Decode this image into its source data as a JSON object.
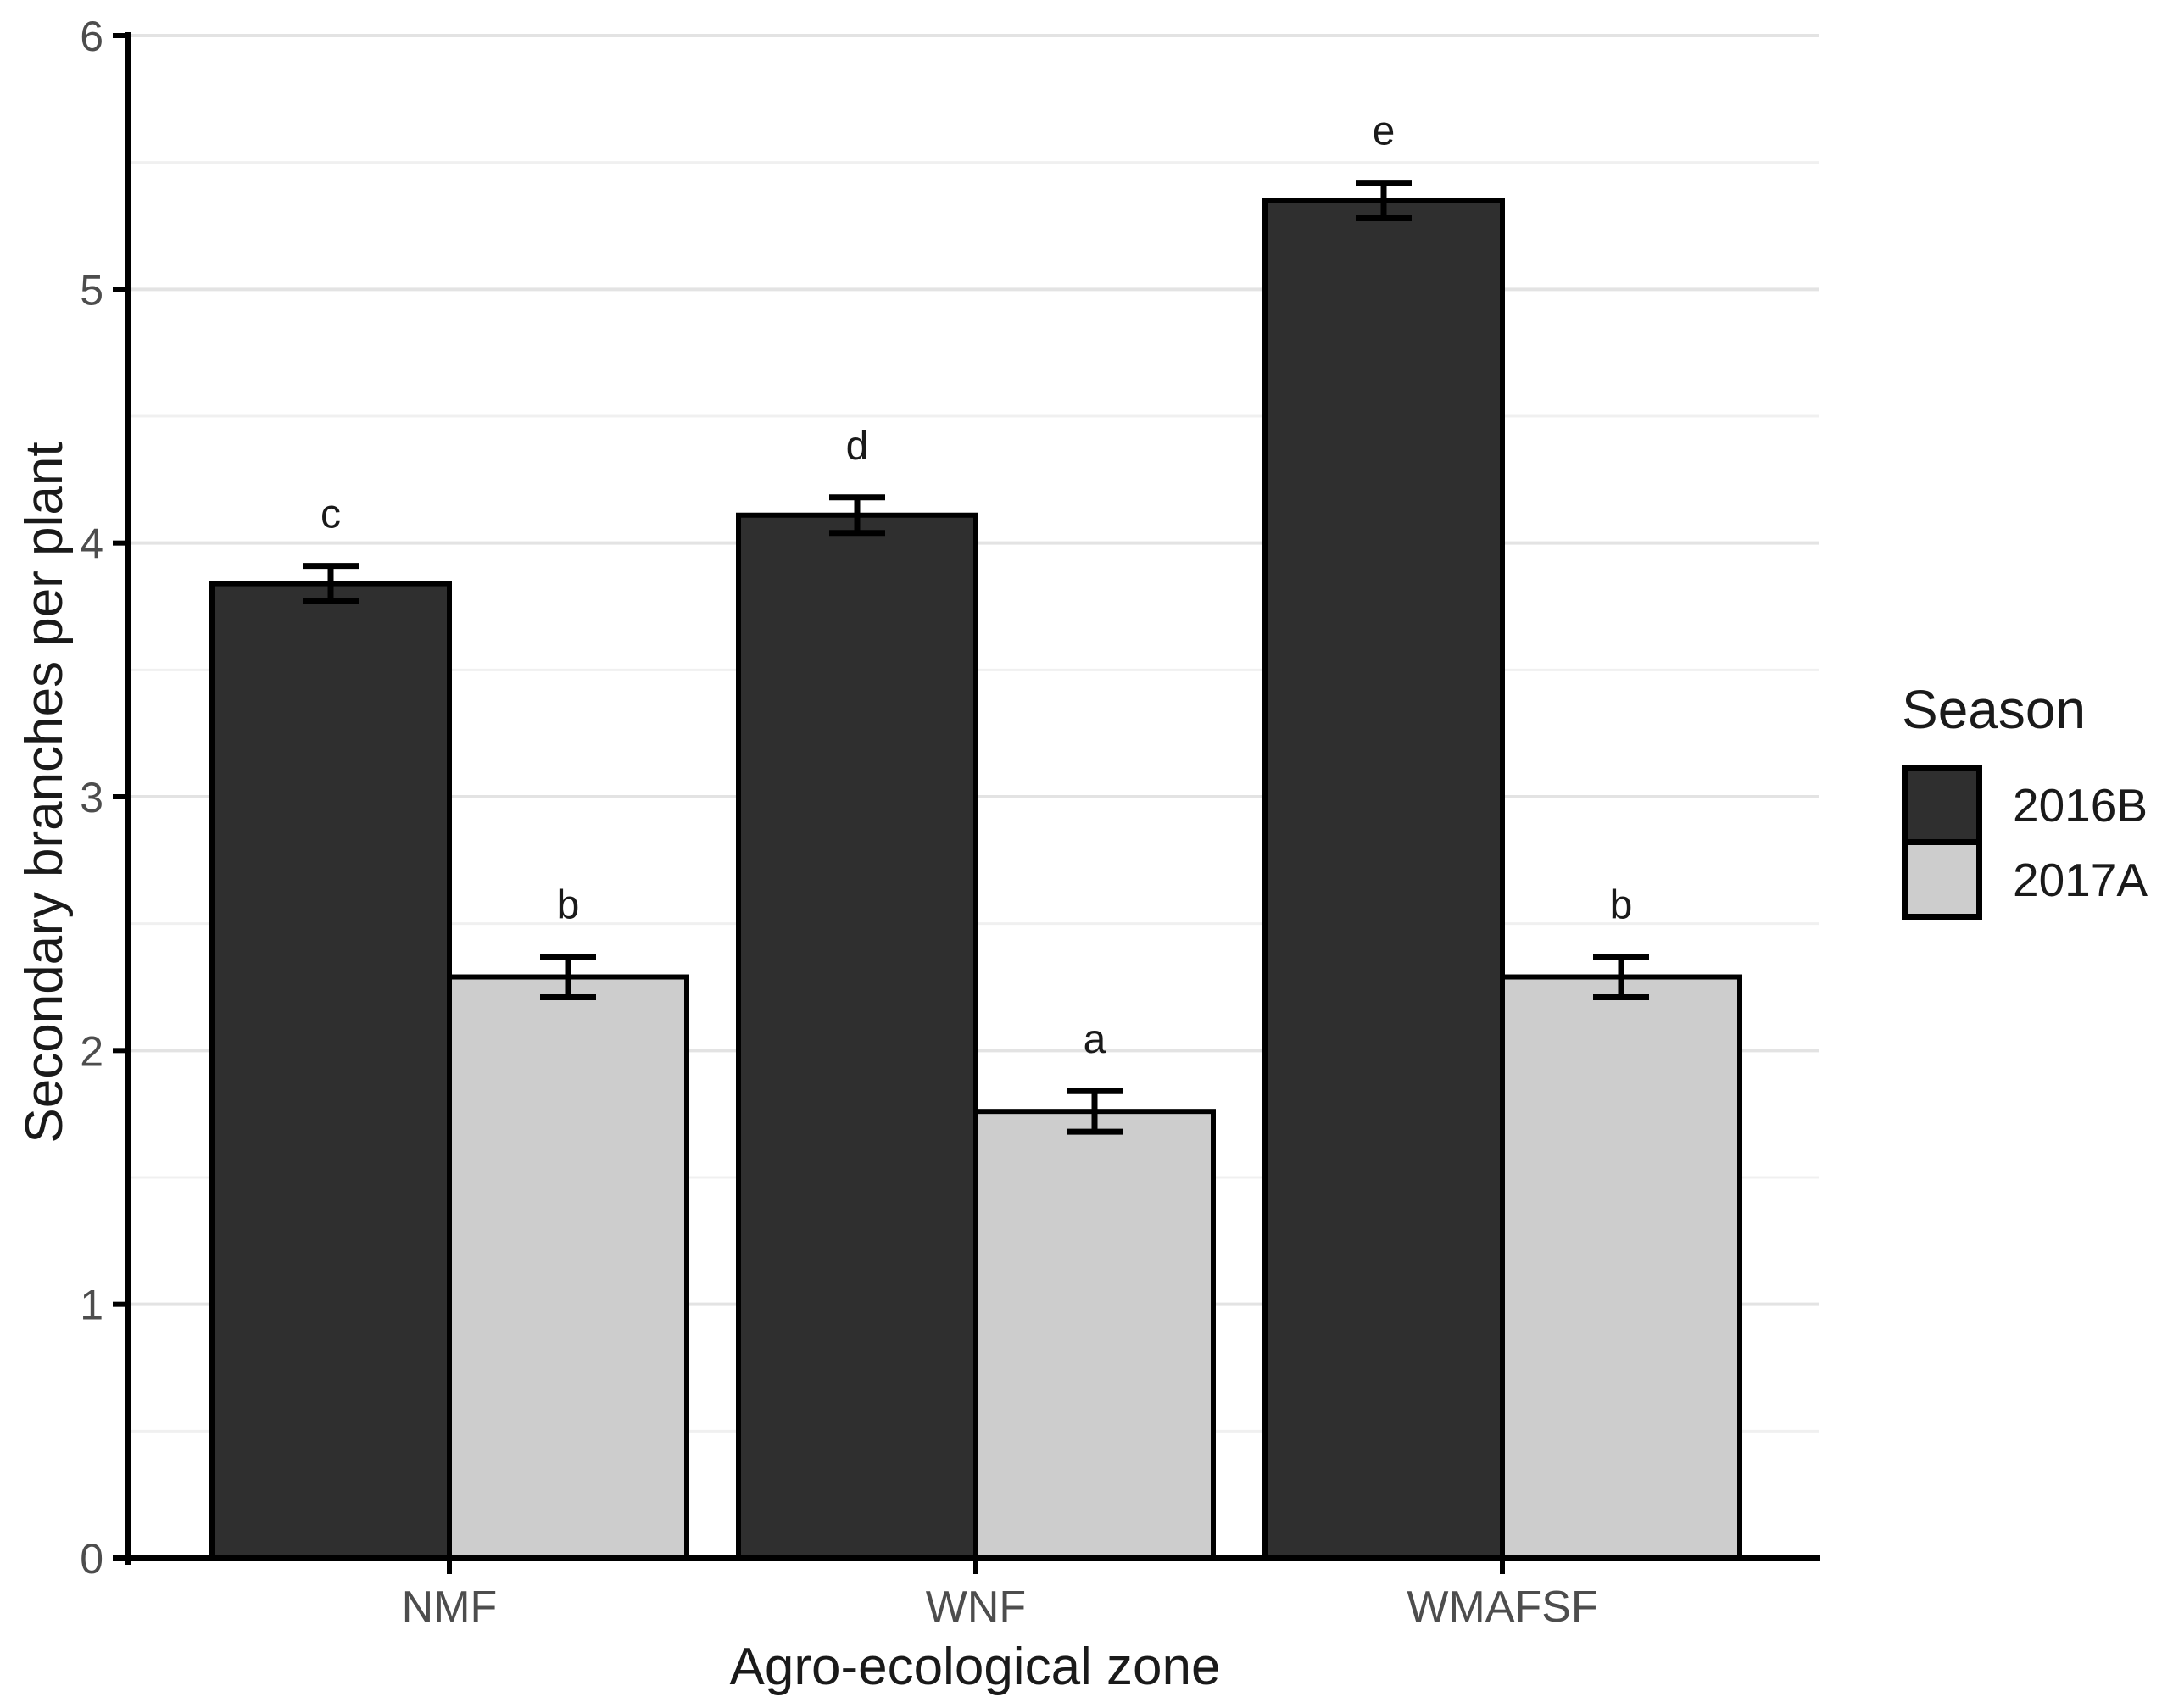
{
  "chart_data": {
    "type": "bar",
    "categories": [
      "NMF",
      "WNF",
      "WMAFSF"
    ],
    "series": [
      {
        "name": "2016B",
        "color": "#2f2f2f",
        "values": [
          3.84,
          4.11,
          5.35
        ],
        "errors": [
          0.07,
          0.07,
          0.07
        ],
        "sig_letters": [
          "c",
          "d",
          "e"
        ]
      },
      {
        "name": "2017A",
        "color": "#cdcdcd",
        "values": [
          2.29,
          1.76,
          2.29
        ],
        "errors": [
          0.08,
          0.08,
          0.08
        ],
        "sig_letters": [
          "b",
          "a",
          "b"
        ]
      }
    ],
    "xlabel": "Agro-ecological zone",
    "ylabel": "Secondary branches per plant",
    "legend_title": "Season",
    "legend_position": "right",
    "ylim": [
      0,
      6
    ],
    "yticks": [
      "0",
      "1",
      "2",
      "3",
      "4",
      "5",
      "6"
    ],
    "grid": {
      "orientation": "horizontal",
      "major_step": 1,
      "minor_step": 0.5
    },
    "error_bars": true,
    "bar_border_color": "#000000",
    "axis_color": "#000000",
    "major_grid_color": "#e3e3e3",
    "minor_grid_color": "#f0f0f0",
    "tick_label_color": "#4d4d4d",
    "text_color": "#1a1a1a"
  }
}
